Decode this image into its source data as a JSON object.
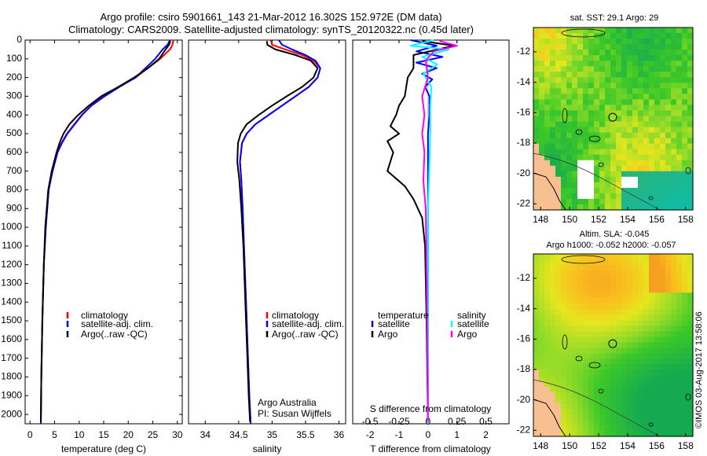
{
  "figure": {
    "title_line1": "Argo profile: csiro 5901661_143 21-Mar-2012 16.302S 152.972E (DM data)",
    "title_line2": "Climatology: CARS2009. Satellite-adjusted climatology: synTS_20120322.nc (0.45d later)",
    "timestamp": "©IMOS 03-Aug-2017 13:58:06"
  },
  "colors": {
    "climatology": "#ff0000",
    "satellite": "#0000ff",
    "argo": "#000000",
    "sal_satellite": "#00ffff",
    "sal_argo": "#ff00ff",
    "land": "#f8c090"
  },
  "chart_data": [
    {
      "type": "line",
      "name": "temperature-profile",
      "xlabel": "temperature (deg C)",
      "ylabel": "",
      "xlim": [
        -1,
        31
      ],
      "ylim": [
        2050,
        0
      ],
      "xticks": [
        0,
        5,
        10,
        15,
        20,
        25,
        30
      ],
      "yticks": [
        0,
        100,
        200,
        300,
        400,
        500,
        600,
        700,
        800,
        900,
        1000,
        1100,
        1200,
        1300,
        1400,
        1500,
        1600,
        1700,
        1800,
        1900,
        2000
      ],
      "legend": [
        "climatology",
        "satellite-adj. clim.",
        "Argo(..raw -QC)"
      ],
      "series": [
        {
          "name": "climatology",
          "color": "#ff0000",
          "x": [
            29.2,
            29.0,
            28.5,
            26.5,
            24.0,
            21.5,
            18.0,
            15.0,
            12.5,
            10.5,
            9.0,
            7.5,
            6.4,
            5.5,
            4.5,
            3.8,
            3.2,
            2.8,
            2.5,
            2.3,
            2.2
          ],
          "y": [
            0,
            25,
            50,
            100,
            150,
            200,
            250,
            300,
            350,
            400,
            450,
            500,
            550,
            600,
            700,
            800,
            1000,
            1200,
            1500,
            1800,
            2050
          ]
        },
        {
          "name": "satellite-adj. clim.",
          "color": "#0000ff",
          "x": [
            28.5,
            28.0,
            27.0,
            25.5,
            23.5,
            21.5,
            18.2,
            15.2,
            12.5,
            10.6,
            9.1,
            7.6,
            6.5,
            5.6,
            4.6,
            3.8,
            3.2,
            2.8,
            2.5,
            2.3,
            2.2
          ],
          "y": [
            0,
            25,
            50,
            100,
            150,
            200,
            250,
            300,
            350,
            400,
            450,
            500,
            550,
            600,
            700,
            800,
            1000,
            1200,
            1500,
            1800,
            2050
          ]
        },
        {
          "name": "Argo(..raw -QC)",
          "color": "#000000",
          "x": [
            28.6,
            28.3,
            27.6,
            26.3,
            24.0,
            21.2,
            18.0,
            14.5,
            12.0,
            9.8,
            8.0,
            6.8,
            6.0,
            5.4,
            4.4,
            3.7,
            3.1,
            2.8,
            2.5,
            2.3,
            2.2
          ],
          "y": [
            5,
            25,
            50,
            100,
            150,
            200,
            250,
            300,
            350,
            400,
            450,
            500,
            550,
            600,
            700,
            800,
            1000,
            1200,
            1500,
            1800,
            2040
          ]
        }
      ]
    },
    {
      "type": "line",
      "name": "salinity-profile",
      "xlabel": "salinity",
      "xlim": [
        33.75,
        36.1
      ],
      "ylim": [
        2050,
        0
      ],
      "xticks": [
        34,
        34.5,
        35,
        35.5,
        36
      ],
      "legend": [
        "climatology",
        "satellite-adj. clim.",
        "Argo(..raw -QC)"
      ],
      "annotation": [
        "Argo Australia",
        "PI: Susan Wijffels"
      ],
      "series": [
        {
          "name": "climatology",
          "color": "#ff0000",
          "x": [
            34.98,
            35.0,
            35.2,
            35.45,
            35.62,
            35.72,
            35.68,
            35.55,
            35.35,
            35.15,
            34.95,
            34.75,
            34.62,
            34.55,
            34.52,
            34.54,
            34.56,
            34.58,
            34.61,
            34.64,
            34.66,
            34.68
          ],
          "y": [
            0,
            25,
            50,
            80,
            110,
            150,
            200,
            250,
            300,
            350,
            400,
            450,
            500,
            550,
            650,
            750,
            900,
            1100,
            1400,
            1700,
            1900,
            2050
          ]
        },
        {
          "name": "satellite-adj. clim.",
          "color": "#0000ff",
          "x": [
            35.1,
            35.15,
            35.3,
            35.5,
            35.65,
            35.72,
            35.68,
            35.55,
            35.35,
            35.15,
            34.95,
            34.75,
            34.62,
            34.55,
            34.52,
            34.54,
            34.56,
            34.58,
            34.61,
            34.64,
            34.66,
            34.68
          ],
          "y": [
            0,
            25,
            50,
            80,
            110,
            150,
            200,
            250,
            300,
            350,
            400,
            450,
            500,
            550,
            650,
            750,
            900,
            1100,
            1400,
            1700,
            1900,
            2050
          ]
        },
        {
          "name": "Argo(..raw -QC)",
          "color": "#000000",
          "x": [
            34.92,
            34.93,
            35.05,
            35.35,
            35.58,
            35.68,
            35.62,
            35.45,
            35.22,
            35.0,
            34.8,
            34.62,
            34.53,
            34.49,
            34.48,
            34.51,
            34.54,
            34.57,
            34.6,
            34.63,
            34.65,
            34.67
          ],
          "y": [
            5,
            25,
            50,
            80,
            110,
            150,
            200,
            250,
            300,
            350,
            400,
            450,
            500,
            550,
            650,
            750,
            900,
            1100,
            1400,
            1700,
            1900,
            2040
          ]
        }
      ]
    },
    {
      "type": "line",
      "name": "difference-profile",
      "xlabel": "T difference from climatology",
      "xlabel_top": "S difference from climatology",
      "xlim_T": [
        -2.6,
        2.8
      ],
      "xlim_S": [
        -0.65,
        0.7
      ],
      "ylim": [
        2050,
        0
      ],
      "xticks_T": [
        -2,
        -1,
        0,
        1,
        2
      ],
      "xticks_S": [
        "-0.5",
        "-0.25",
        "0",
        "0.25",
        "0.5"
      ],
      "xticks_S_values": [
        -0.5,
        -0.25,
        0,
        0.25,
        0.5
      ],
      "legend_temperature": {
        "title": "temperature",
        "satellite": "satellite",
        "argo": "Argo"
      },
      "legend_salinity": {
        "title": "salinity",
        "satellite": "satellite",
        "argo": "Argo"
      },
      "series": [
        {
          "name": "T satellite",
          "units": "degC",
          "color": "#0000ff",
          "x": [
            -0.6,
            0.3,
            -0.4,
            0.5,
            -0.4,
            0.3,
            -0.2,
            0.15,
            -0.1,
            0.05,
            0.05,
            0.0,
            0.0,
            0.0,
            0.0,
            0.0
          ],
          "y": [
            0,
            30,
            60,
            90,
            120,
            150,
            180,
            210,
            250,
            300,
            400,
            500,
            700,
            900,
            1300,
            2050
          ]
        },
        {
          "name": "T Argo",
          "units": "degC",
          "color": "#000000",
          "x": [
            -0.2,
            0.9,
            -0.5,
            -0.5,
            -0.7,
            -0.8,
            -1.0,
            -1.1,
            -1.3,
            -1.0,
            -1.4,
            -1.2,
            -1.4,
            -0.8,
            -0.5,
            -0.2,
            -0.1,
            -0.05,
            0.0
          ],
          "y": [
            5,
            30,
            80,
            150,
            200,
            300,
            350,
            400,
            460,
            500,
            540,
            600,
            700,
            780,
            850,
            950,
            1100,
            1500,
            2040
          ]
        },
        {
          "name": "S satellite",
          "units": "psu",
          "color": "#00ffff",
          "x": [
            0.05,
            -0.15,
            0.18,
            -0.05,
            0.08,
            -0.04,
            0.03,
            0.02,
            0.02,
            0.01,
            0.0,
            0.0,
            0.0
          ],
          "y": [
            0,
            30,
            50,
            90,
            130,
            180,
            250,
            350,
            500,
            700,
            900,
            1300,
            2050
          ]
        },
        {
          "name": "S Argo",
          "units": "psu",
          "color": "#ff00ff",
          "x": [
            0.1,
            0.25,
            0.05,
            -0.02,
            0.0,
            -0.05,
            -0.03,
            -0.05,
            -0.03,
            -0.04,
            -0.02,
            -0.01,
            0.0
          ],
          "y": [
            5,
            30,
            60,
            110,
            200,
            300,
            400,
            500,
            600,
            750,
            900,
            1300,
            2040
          ]
        }
      ]
    },
    {
      "type": "heatmap",
      "name": "sst-map",
      "title": "sat. SST: 29.1  Argo: 29",
      "xticks": [
        148,
        150,
        152,
        154,
        156,
        158
      ],
      "yticks": [
        -12,
        -14,
        -16,
        -18,
        -20,
        -22
      ],
      "xlim": [
        147.5,
        158.5
      ],
      "ylim": [
        -22.4,
        -10.4
      ],
      "profile_position": [
        152.97,
        -16.3
      ]
    },
    {
      "type": "heatmap",
      "name": "sla-map",
      "title_line1": "Altim. SLA: -0.045",
      "title_line2": "Argo h1000: -0.052  h2000: -0.057",
      "xticks": [
        148,
        150,
        152,
        154,
        156,
        158
      ],
      "yticks": [
        -12,
        -14,
        -16,
        -18,
        -20,
        -22
      ],
      "xlim": [
        147.5,
        158.5
      ],
      "ylim": [
        -22.4,
        -10.4
      ],
      "profile_position": [
        152.97,
        -16.3
      ]
    }
  ]
}
